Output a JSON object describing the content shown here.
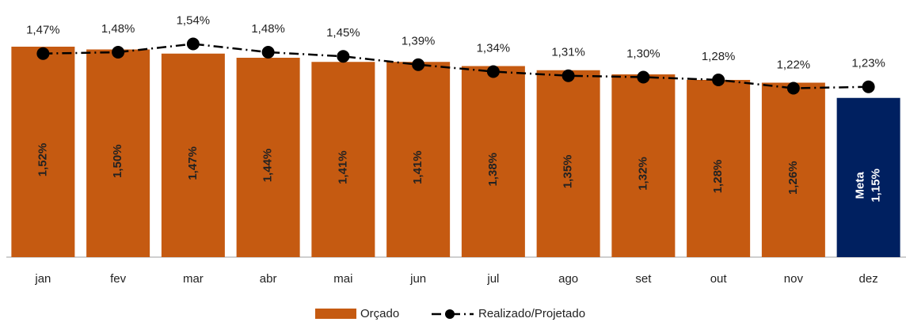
{
  "chart_data": {
    "type": "bar",
    "categories": [
      "jan",
      "fev",
      "mar",
      "abr",
      "mai",
      "jun",
      "jul",
      "ago",
      "set",
      "out",
      "nov",
      "dez"
    ],
    "series": [
      {
        "name": "Orçado",
        "type": "bar",
        "colors": [
          "#c55a11",
          "#c55a11",
          "#c55a11",
          "#c55a11",
          "#c55a11",
          "#c55a11",
          "#c55a11",
          "#c55a11",
          "#c55a11",
          "#c55a11",
          "#c55a11",
          "#002060"
        ],
        "values": [
          1.52,
          1.5,
          1.47,
          1.44,
          1.41,
          1.41,
          1.38,
          1.35,
          1.32,
          1.28,
          1.26,
          1.15
        ],
        "value_labels": [
          "1,52%",
          "1,50%",
          "1,47%",
          "1,44%",
          "1,41%",
          "1,41%",
          "1,38%",
          "1,35%",
          "1,32%",
          "1,28%",
          "1,26%",
          "1,15%"
        ]
      },
      {
        "name": "Realizado/Projetado",
        "type": "line",
        "color": "#000000",
        "values": [
          1.47,
          1.48,
          1.54,
          1.48,
          1.45,
          1.39,
          1.34,
          1.31,
          1.3,
          1.28,
          1.22,
          1.23
        ],
        "value_labels": [
          "1,47%",
          "1,48%",
          "1,54%",
          "1,48%",
          "1,45%",
          "1,39%",
          "1,34%",
          "1,31%",
          "1,30%",
          "1,28%",
          "1,22%",
          "1,23%"
        ]
      }
    ],
    "meta_label": "Meta",
    "ylim": [
      0,
      1.6
    ]
  }
}
